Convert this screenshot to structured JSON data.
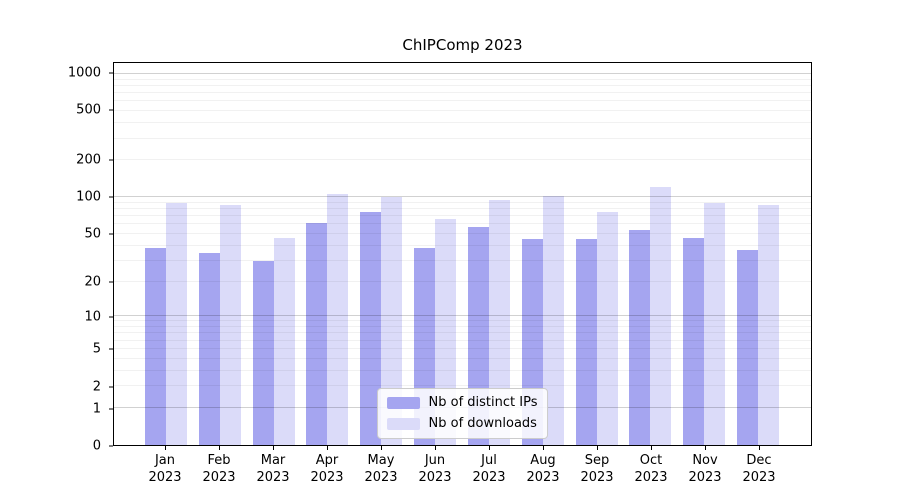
{
  "chart_data": {
    "type": "bar",
    "title": "ChIPComp 2023",
    "xlabel": "",
    "ylabel": "",
    "categories": [
      "Jan",
      "Feb",
      "Mar",
      "Apr",
      "May",
      "Jun",
      "Jul",
      "Aug",
      "Sep",
      "Oct",
      "Nov",
      "Dec"
    ],
    "category_year": "2023",
    "series": [
      {
        "name": "Nb of distinct IPs",
        "color": "#a5a5f0",
        "values": [
          38,
          35,
          30,
          61,
          75,
          38,
          57,
          45,
          45,
          54,
          46,
          37
        ]
      },
      {
        "name": "Nb of downloads",
        "color": "#dbdbf9",
        "values": [
          89,
          86,
          46,
          106,
          100,
          66,
          95,
          103,
          76,
          122,
          90,
          86
        ]
      }
    ],
    "yscale": "log1p",
    "ylim": [
      0,
      1228
    ],
    "yticks": [
      0,
      1,
      2,
      5,
      10,
      20,
      50,
      100,
      200,
      500,
      1000
    ],
    "major_gridlines": [
      1,
      10,
      100,
      1000
    ],
    "minor_gridlines": [
      2,
      3,
      4,
      5,
      6,
      7,
      8,
      9,
      20,
      30,
      40,
      50,
      60,
      70,
      80,
      90,
      200,
      300,
      400,
      500,
      600,
      700,
      800,
      900
    ],
    "grid": true,
    "legend_position": "lower center",
    "axis_color": "#000000",
    "background_color": "#ffffff"
  }
}
